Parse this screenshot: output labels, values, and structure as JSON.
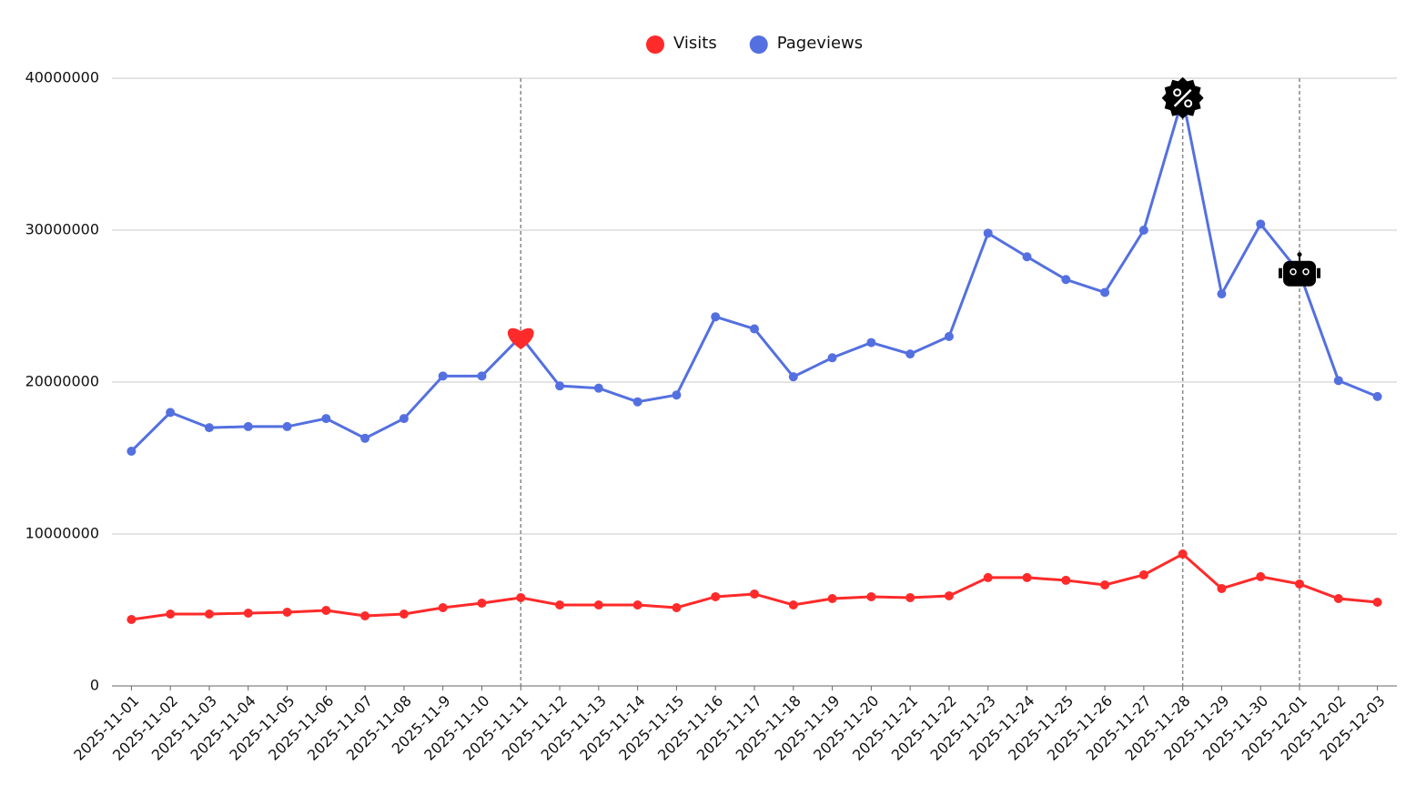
{
  "chart_data": {
    "type": "line",
    "categories": [
      "2025-11-01",
      "2025-11-02",
      "2025-11-03",
      "2025-11-04",
      "2025-11-05",
      "2025-11-06",
      "2025-11-07",
      "2025-11-08",
      "2025-11-9",
      "2025-11-10",
      "2025-11-11",
      "2025-11-12",
      "2025-11-13",
      "2025-11-14",
      "2025-11-15",
      "2025-11-16",
      "2025-11-17",
      "2025-11-18",
      "2025-11-19",
      "2025-11-20",
      "2025-11-21",
      "2025-11-22",
      "2025-11-23",
      "2025-11-24",
      "2025-11-25",
      "2025-11-26",
      "2025-11-27",
      "2025-11-28",
      "2025-11-29",
      "2025-11-30",
      "2025-12-01",
      "2025-12-02",
      "2025-12-03"
    ],
    "series": [
      {
        "name": "Visits",
        "color": "#ff2a2a",
        "values": [
          4370000,
          4730000,
          4730000,
          4790000,
          4850000,
          4970000,
          4610000,
          4730000,
          5150000,
          5450000,
          5810000,
          5330000,
          5330000,
          5330000,
          5150000,
          5870000,
          6050000,
          5330000,
          5750000,
          5870000,
          5810000,
          5930000,
          7130000,
          7130000,
          6950000,
          6650000,
          7310000,
          8680000,
          6410000,
          7190000,
          6710000,
          5750000,
          5510000
        ]
      },
      {
        "name": "Pageviews",
        "color": "#5470e0",
        "values": [
          15450000,
          18000000,
          17000000,
          17070000,
          17070000,
          17600000,
          16300000,
          17600000,
          20400000,
          20400000,
          23000000,
          19750000,
          19600000,
          18700000,
          19150000,
          24300000,
          23500000,
          20350000,
          21600000,
          22600000,
          21850000,
          23000000,
          29800000,
          28250000,
          26750000,
          25900000,
          30000000,
          38700000,
          25800000,
          30400000,
          27200000,
          20100000,
          19050000
        ]
      }
    ],
    "markers": [
      "2025-11-11",
      "2025-11-28",
      "2025-12-01"
    ],
    "ylim": [
      0,
      40000000
    ],
    "yticks": [
      0,
      10000000,
      20000000,
      30000000,
      40000000
    ],
    "grid": true,
    "legend": "top"
  }
}
